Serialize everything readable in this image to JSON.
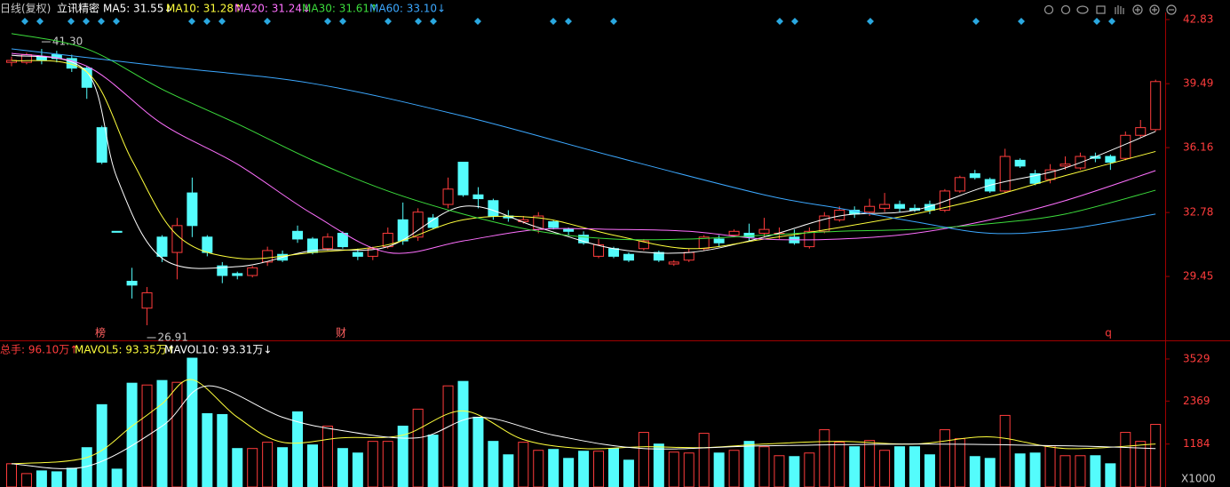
{
  "header": {
    "period": "日线(复权)",
    "stock": "立讯精密"
  },
  "chart_data": [
    {
      "type": "candlestick",
      "open": [
        40.6,
        40.6,
        40.9,
        41.0,
        40.8,
        40.3,
        37.2,
        31.8,
        29.2,
        27.8,
        31.5,
        30.7,
        33.8,
        31.5,
        30.0,
        29.6,
        29.5,
        30.2,
        30.6,
        31.8,
        31.4,
        30.9,
        31.7,
        30.7,
        30.5,
        31.0,
        32.4,
        31.5,
        32.5,
        33.2,
        35.4,
        33.7,
        33.4,
        32.6,
        32.3,
        31.9,
        32.3,
        31.9,
        31.6,
        30.5,
        30.9,
        30.6,
        30.9,
        30.7,
        30.1,
        30.3,
        30.9,
        31.4,
        31.6,
        31.7,
        31.7,
        31.7,
        31.5,
        31.0,
        31.8,
        32.4,
        32.9,
        32.8,
        33.0,
        33.2,
        33.0,
        33.2,
        32.9,
        33.9,
        34.8,
        34.5,
        33.9,
        35.5,
        34.8,
        34.5,
        35.2,
        35.1,
        35.7,
        35.7,
        35.6,
        36.8,
        37.1
      ],
      "close": [
        40.7,
        41.0,
        40.7,
        40.8,
        40.3,
        39.3,
        35.4,
        31.75,
        29.0,
        28.6,
        30.5,
        32.1,
        32.1,
        30.7,
        29.5,
        29.5,
        29.9,
        30.8,
        30.3,
        31.4,
        30.7,
        31.5,
        31.0,
        30.5,
        30.9,
        31.7,
        31.3,
        32.8,
        32.0,
        34.0,
        33.7,
        33.5,
        32.6,
        32.5,
        32.4,
        32.6,
        32.0,
        31.8,
        31.2,
        31.1,
        30.5,
        30.3,
        31.3,
        30.3,
        30.2,
        30.7,
        31.5,
        31.2,
        31.8,
        31.5,
        31.9,
        31.7,
        31.2,
        31.8,
        32.6,
        32.9,
        32.7,
        33.1,
        33.2,
        33.0,
        32.9,
        32.9,
        33.9,
        34.6,
        34.6,
        33.9,
        35.7,
        35.2,
        34.3,
        35.0,
        35.3,
        35.7,
        35.6,
        35.4,
        36.8,
        37.2,
        39.6
      ],
      "high": [
        40.9,
        41.1,
        41.3,
        41.2,
        41.0,
        40.4,
        37.3,
        31.8,
        29.9,
        28.9,
        31.6,
        32.5,
        34.6,
        31.6,
        30.2,
        29.7,
        30.0,
        31.0,
        30.8,
        32.1,
        31.5,
        31.7,
        31.8,
        30.9,
        31.0,
        32.0,
        33.3,
        33.0,
        32.7,
        34.6,
        35.4,
        34.1,
        33.5,
        32.9,
        32.6,
        32.8,
        32.4,
        32.0,
        31.8,
        31.4,
        31.0,
        30.7,
        31.4,
        30.8,
        30.3,
        30.9,
        31.6,
        31.6,
        31.9,
        32.2,
        32.5,
        32.0,
        31.9,
        32.0,
        32.8,
        33.1,
        33.1,
        33.5,
        33.8,
        33.4,
        33.2,
        33.4,
        34.0,
        34.7,
        35.0,
        34.6,
        36.1,
        35.6,
        35.0,
        35.3,
        35.7,
        35.9,
        35.9,
        35.8,
        37.0,
        37.6,
        39.7
      ],
      "low": [
        40.4,
        40.5,
        40.5,
        40.6,
        40.1,
        38.7,
        35.3,
        31.75,
        28.3,
        26.91,
        30.2,
        29.3,
        31.5,
        30.5,
        29.1,
        29.3,
        29.4,
        30.0,
        30.2,
        31.2,
        30.6,
        30.8,
        30.9,
        30.3,
        30.3,
        30.9,
        31.1,
        31.3,
        31.9,
        33.0,
        33.6,
        33.0,
        32.4,
        32.3,
        32.2,
        31.7,
        31.9,
        31.6,
        31.1,
        30.4,
        30.4,
        30.2,
        30.8,
        30.2,
        30.0,
        30.2,
        30.8,
        31.0,
        31.5,
        31.3,
        31.5,
        31.4,
        31.1,
        30.9,
        31.7,
        32.3,
        32.5,
        32.6,
        32.8,
        32.8,
        32.8,
        32.7,
        32.8,
        33.8,
        34.5,
        33.8,
        33.8,
        35.1,
        34.2,
        34.3,
        35.0,
        35.0,
        35.4,
        35.0,
        35.5,
        36.7,
        37.0
      ],
      "up_color": "#ff3c3c",
      "down_color": "#54fcfc",
      "ylim": [
        26.26,
        43.2
      ],
      "yticks": [
        29.45,
        32.78,
        36.16,
        39.49,
        42.83
      ],
      "annotations": [
        {
          "value": 41.3,
          "label": "41.30"
        },
        26.91
      ],
      "event_labels": [
        "榜",
        "财",
        "q"
      ],
      "series": [
        {
          "name": "MA5: 31.55↓",
          "color": "#ffffff",
          "x": [
            0,
            5,
            7,
            10,
            15,
            20,
            25,
            30,
            35,
            40,
            45,
            50,
            55,
            60,
            65,
            70,
            76
          ],
          "values": [
            40.98,
            40.1,
            34.6,
            30.4,
            29.96,
            30.8,
            31.0,
            33.1,
            32.0,
            30.9,
            30.7,
            31.5,
            32.6,
            32.9,
            34.2,
            35.1,
            37.0
          ]
        },
        {
          "name": "MA10: 31.28↑",
          "color": "#ffff3c",
          "x": [
            0,
            5,
            8,
            11,
            15,
            20,
            25,
            30,
            35,
            40,
            45,
            50,
            55,
            60,
            65,
            70,
            76
          ],
          "values": [
            40.7,
            40.1,
            35.5,
            31.6,
            30.4,
            30.7,
            31.1,
            32.4,
            32.5,
            31.6,
            30.9,
            31.4,
            32.0,
            32.7,
            33.6,
            34.7,
            35.96
          ]
        },
        {
          "name": "MA20: 31.24↓",
          "color": "#ff70ff",
          "x": [
            0,
            5,
            10,
            15,
            20,
            25,
            30,
            35,
            40,
            45,
            50,
            55,
            60,
            65,
            70,
            76
          ],
          "values": [
            41.07,
            40.4,
            37.4,
            35.3,
            32.7,
            30.7,
            31.3,
            31.9,
            31.9,
            31.8,
            31.4,
            31.4,
            31.7,
            32.4,
            33.4,
            34.96
          ]
        },
        {
          "name": "MA30: 31.61↑",
          "color": "#3cdc3c",
          "x": [
            0,
            5,
            10,
            15,
            20,
            25,
            30,
            35,
            40,
            45,
            50,
            55,
            60,
            65,
            70,
            76
          ],
          "values": [
            42.1,
            41.3,
            39.2,
            37.4,
            35.5,
            33.9,
            32.7,
            31.8,
            31.4,
            31.4,
            31.6,
            31.8,
            31.9,
            32.2,
            32.7,
            33.94
          ]
        },
        {
          "name": "MA60: 33.10↓",
          "color": "#3ca8ff",
          "x": [
            0,
            10,
            20,
            30,
            40,
            50,
            55,
            60,
            65,
            70,
            76
          ],
          "values": [
            41.3,
            40.4,
            39.5,
            37.8,
            35.7,
            33.7,
            33.0,
            32.3,
            31.7,
            31.9,
            32.7
          ]
        }
      ]
    },
    {
      "type": "volume",
      "title": "总手: 96.10万↑",
      "values": [
        641,
        370,
        444,
        419,
        518,
        1085,
        2270,
        493,
        2862,
        2812,
        2936,
        2886,
        3552,
        2023,
        1998,
        1061,
        1061,
        1234,
        1085,
        2072,
        1160,
        1678,
        1061,
        937,
        1258,
        1258,
        1678,
        2146,
        1431,
        2788,
        2911,
        1924,
        1258,
        888,
        1234,
        1011,
        1036,
        789,
        987,
        987,
        1061,
        740,
        1505,
        1184,
        962,
        937,
        1480,
        937,
        1011,
        1258,
        1110,
        863,
        839,
        937,
        1579,
        1234,
        1110,
        1283,
        1011,
        1110,
        1110,
        888,
        1579,
        1332,
        839,
        789,
        1974,
        913,
        937,
        1135,
        863,
        863,
        863,
        641,
        1505,
        1258,
        1727
      ],
      "ylim": [
        0,
        3822
      ],
      "yticks": [
        1184,
        2369,
        3529
      ],
      "unit_label": "X1000",
      "series": [
        {
          "name": "MAVOL5: 93.35万↑",
          "color": "#ffff3c",
          "x": [
            0,
            5,
            8,
            10,
            12,
            15,
            18,
            22,
            26,
            30,
            34,
            38,
            42,
            46,
            50,
            55,
            60,
            65,
            70,
            76
          ],
          "values": [
            641,
            814,
            1678,
            2294,
            2960,
            1924,
            1234,
            1357,
            1431,
            2097,
            1308,
            1061,
            1110,
            1085,
            1184,
            1258,
            1184,
            1382,
            1061,
            1184
          ]
        },
        {
          "name": "MAVOL10: 93.31万↓",
          "color": "#ffffff",
          "x": [
            0,
            5,
            10,
            13,
            18,
            22,
            27,
            31,
            36,
            42,
            50,
            60,
            70,
            76
          ],
          "values": [
            641,
            567,
            1678,
            2788,
            1924,
            1554,
            1357,
            1924,
            1431,
            1061,
            1135,
            1184,
            1135,
            1061
          ]
        }
      ]
    }
  ]
}
